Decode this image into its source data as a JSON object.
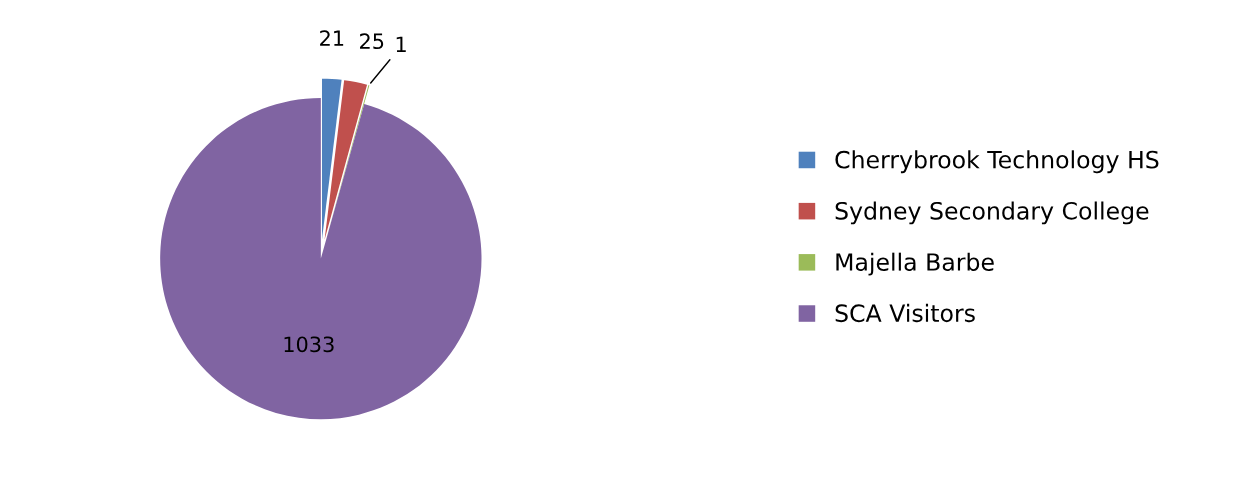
{
  "chart_data": {
    "type": "pie",
    "categories": [
      "Cherrybrook Technology HS",
      "Sydney Secondary College",
      "Majella Barbe",
      "SCA Visitors"
    ],
    "values": [
      21,
      25,
      1,
      1033
    ],
    "colors": [
      "#4f81bd",
      "#c0504d",
      "#9bbb59",
      "#8064a2"
    ],
    "data_labels": true,
    "legend": "right"
  }
}
